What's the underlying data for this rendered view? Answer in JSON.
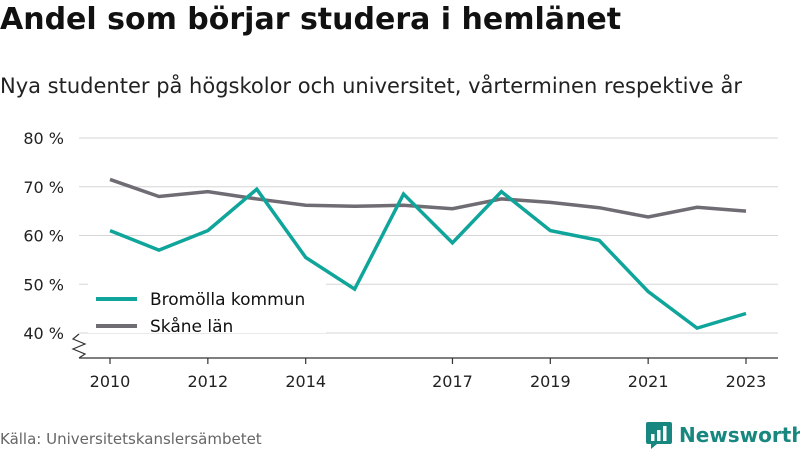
{
  "title": "Andel som börjar studera i hemlänet",
  "subtitle": "Nya studenter på högskolor och universitet, vårterminen respektive år",
  "source": "Källa: Universitetskanslersämbetet",
  "brand": {
    "name": "Newsworthy",
    "icon": "newsworthy-logo-icon",
    "color": "#17877f"
  },
  "chart_data": {
    "type": "line",
    "x": [
      2010,
      2011,
      2012,
      2013,
      2014,
      2015,
      2016,
      2017,
      2018,
      2019,
      2020,
      2021,
      2022,
      2023
    ],
    "x_tick_labels": [
      "2010",
      "2012",
      "2014",
      "2017",
      "2019",
      "2021",
      "2023"
    ],
    "x_tick_values": [
      2010,
      2012,
      2014,
      2017,
      2019,
      2021,
      2023
    ],
    "y_tick_labels": [
      "40 %",
      "50 %",
      "60 %",
      "70 %",
      "80 %"
    ],
    "y_tick_values": [
      40,
      50,
      60,
      70,
      80
    ],
    "ylim": [
      40,
      80
    ],
    "y_axis_break": true,
    "grid": "horizontal",
    "legend_position": "bottom-left",
    "series": [
      {
        "name": "Bromölla kommun",
        "color": "#0fa59a",
        "values": [
          61,
          57,
          61,
          69.5,
          55.5,
          49,
          68.5,
          58.5,
          69,
          61,
          59,
          48.5,
          41,
          44
        ]
      },
      {
        "name": "Skåne län",
        "color": "#6f6c73",
        "values": [
          71.5,
          68,
          69,
          67.5,
          66.2,
          66,
          66.2,
          65.5,
          67.5,
          66.8,
          65.7,
          63.8,
          65.8,
          65
        ]
      }
    ]
  }
}
